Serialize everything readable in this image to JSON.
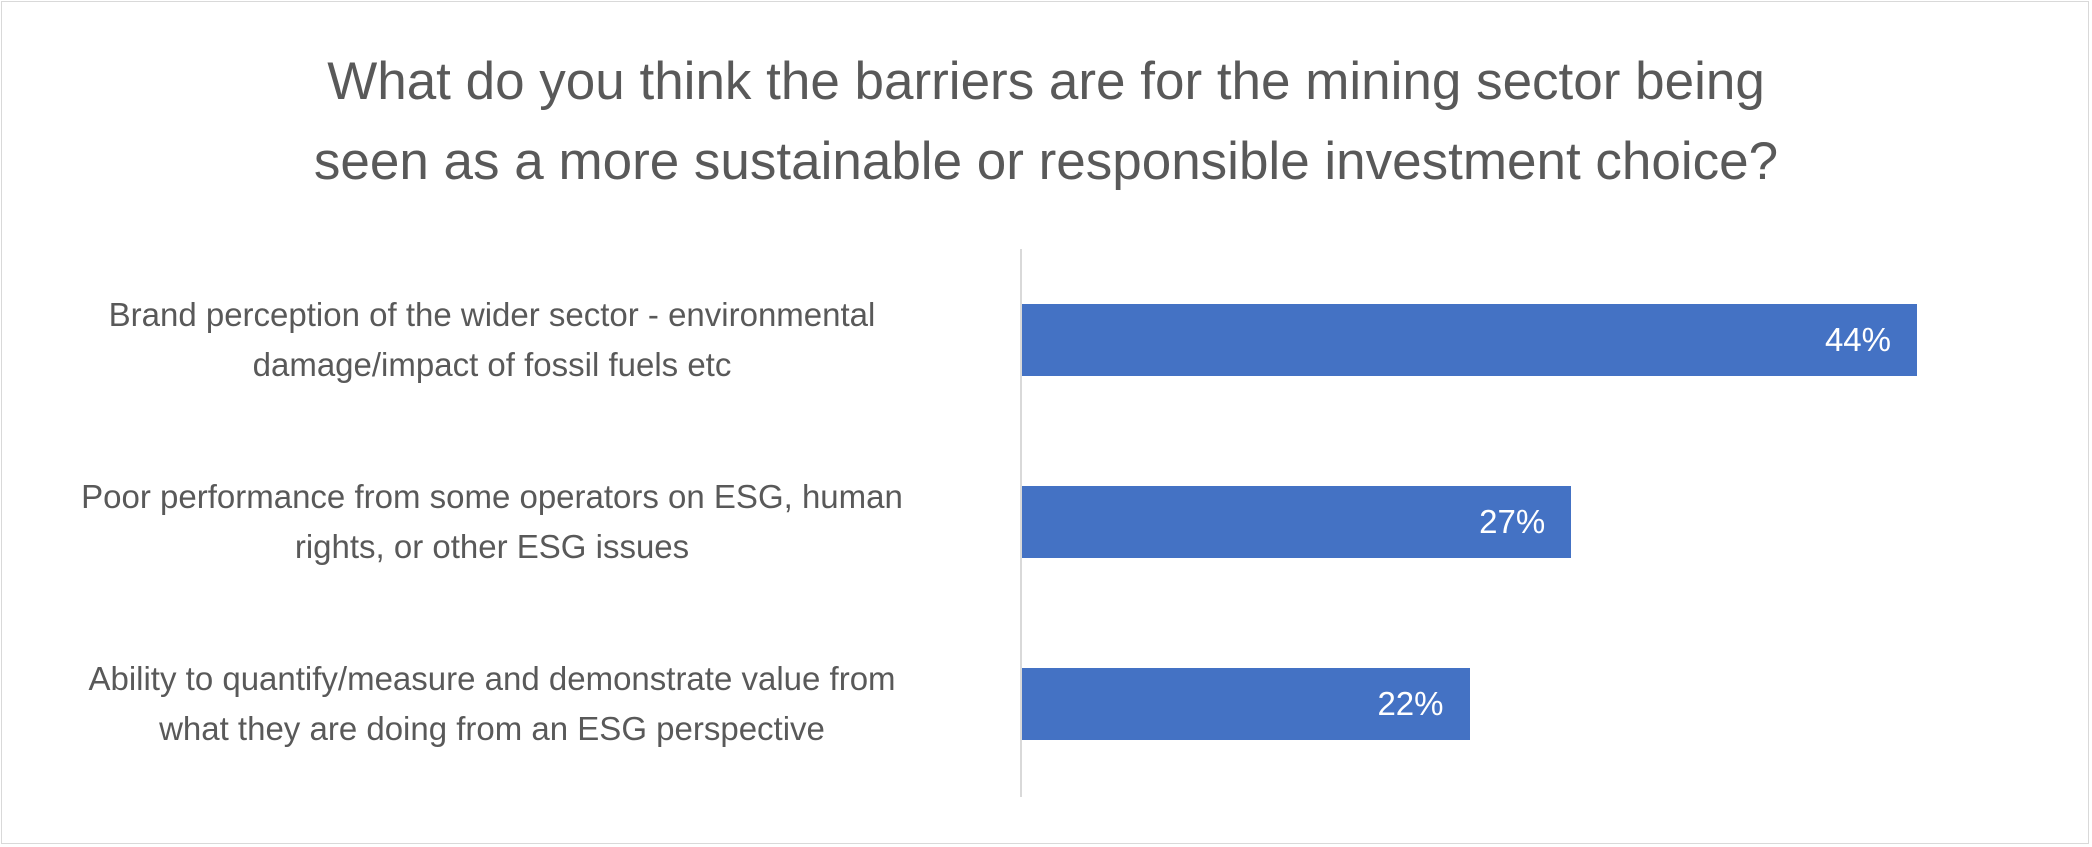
{
  "chart_data": {
    "type": "bar",
    "orientation": "horizontal",
    "title": "What do you think the barriers are for the mining sector being seen as a more sustainable or responsible investment choice?",
    "title_lines": [
      "What do you think the barriers are for the mining sector being",
      "seen as a more sustainable or responsible investment choice?"
    ],
    "categories": [
      "Brand perception of the wider sector - environmental damage/impact of fossil fuels etc",
      "Poor performance from some operators on ESG, human rights, or other ESG issues",
      "Ability to quantify/measure and demonstrate value from what they are doing from an ESG perspective"
    ],
    "category_lines": [
      [
        "Brand perception of the wider sector - environmental",
        "damage/impact of fossil fuels etc"
      ],
      [
        "Poor performance from some operators on ESG, human",
        "rights, or other ESG issues"
      ],
      [
        "Ability to quantify/measure and demonstrate value from",
        "what they are doing from an ESG perspective"
      ]
    ],
    "values": [
      44,
      27,
      22
    ],
    "data_labels": [
      "44%",
      "27%",
      "22%"
    ],
    "xlim": [
      0,
      50
    ],
    "color": "#4472c4",
    "grid": false,
    "legend": "none"
  }
}
